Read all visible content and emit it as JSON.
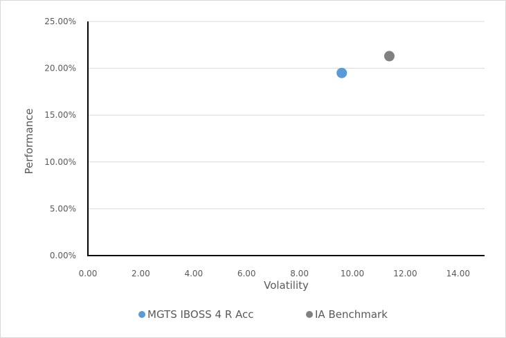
{
  "chart_data": {
    "type": "scatter",
    "title": "",
    "xlabel": "Volatility",
    "ylabel": "Performance",
    "xlim": [
      0,
      15
    ],
    "ylim": [
      0,
      25
    ],
    "x_ticks": [
      "0.00",
      "2.00",
      "4.00",
      "6.00",
      "8.00",
      "10.00",
      "12.00",
      "14.00"
    ],
    "y_ticks": [
      "0.00%",
      "5.00%",
      "10.00%",
      "15.00%",
      "20.00%",
      "25.00%"
    ],
    "grid": "horizontal",
    "legend_position": "bottom",
    "series": [
      {
        "name": "MGTS IBOSS 4 R Acc",
        "color": "#5b9bd5",
        "points": [
          {
            "x": 9.6,
            "y": 19.5
          }
        ]
      },
      {
        "name": "IA Benchmark",
        "color": "#808080",
        "points": [
          {
            "x": 11.4,
            "y": 21.3
          }
        ]
      }
    ]
  }
}
